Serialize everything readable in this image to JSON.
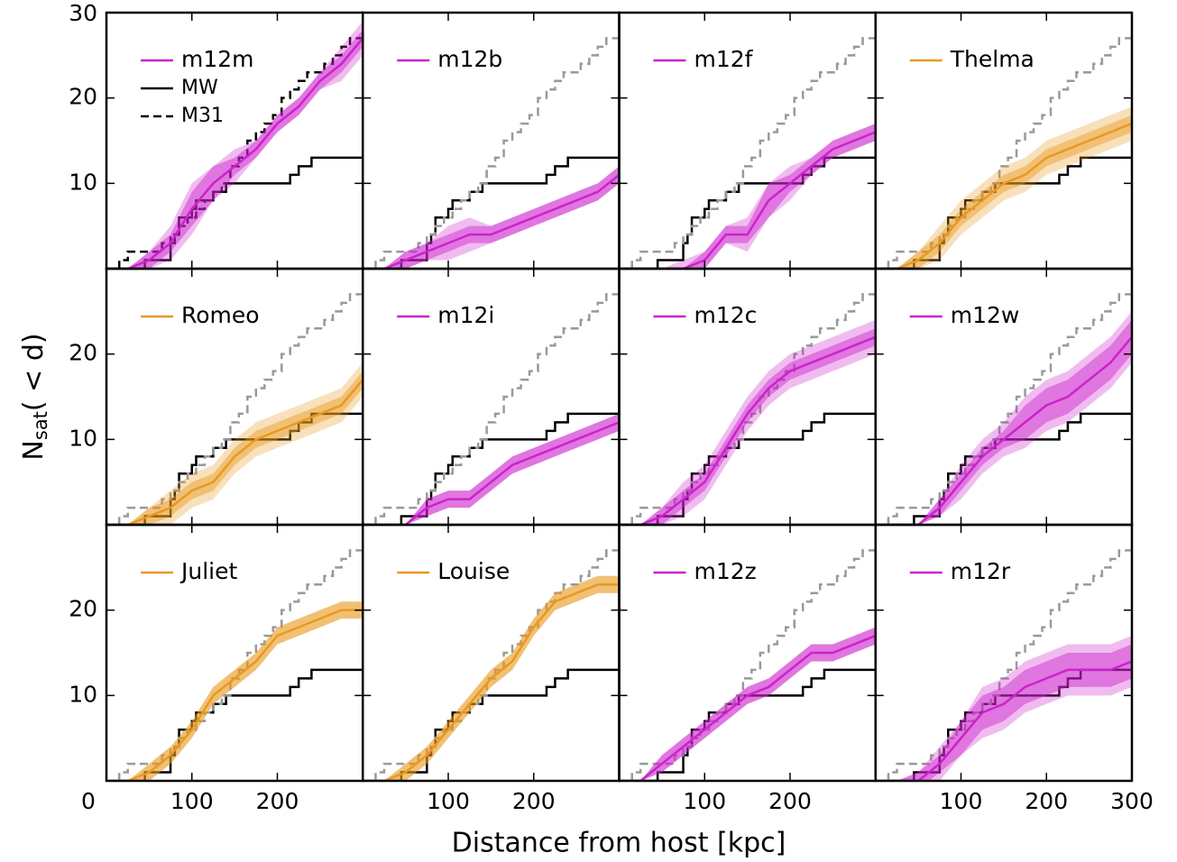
{
  "x_label": "Distance from host [kpc]",
  "y_label": [
    "N",
    "sat",
    "( < d)"
  ],
  "xlim": [
    0,
    300
  ],
  "ylim": [
    0,
    30
  ],
  "xticks": [
    0,
    100,
    200,
    300
  ],
  "yticks": [
    10,
    20,
    30
  ],
  "reference": {
    "series": [
      {
        "name": "MW",
        "color": "#000000",
        "dashed": false,
        "x": [
          0,
          45,
          60,
          75,
          80,
          85,
          95,
          100,
          105,
          125,
          140,
          215,
          225,
          240,
          300
        ],
        "values": [
          0,
          1,
          1,
          3,
          4,
          6,
          6,
          7,
          8,
          9,
          10,
          11,
          12,
          13,
          13
        ]
      },
      {
        "name": "M31",
        "color": "#999999",
        "dashed": true,
        "x": [
          0,
          15,
          25,
          55,
          65,
          75,
          85,
          95,
          105,
          115,
          125,
          135,
          145,
          155,
          165,
          175,
          185,
          195,
          205,
          215,
          225,
          235,
          245,
          255,
          265,
          275,
          285,
          300
        ],
        "values": [
          0,
          1,
          2,
          2,
          3,
          4,
          5,
          6,
          7,
          8,
          9,
          10,
          12,
          13,
          15,
          16,
          17,
          18,
          20,
          21,
          22,
          23,
          23,
          24,
          25,
          26,
          27,
          27
        ]
      }
    ]
  },
  "chart_data": [
    {
      "type": "line",
      "name": "m12m",
      "color": "#cc22cc",
      "m31_color": "#000000",
      "show_reference_legend": true,
      "x": [
        0,
        25,
        50,
        75,
        100,
        125,
        150,
        175,
        200,
        225,
        250,
        275,
        300
      ],
      "values": [
        0,
        0,
        1,
        3,
        7,
        10,
        12,
        14,
        17,
        19,
        22,
        24,
        27
      ],
      "err_inner": [
        0,
        0,
        1,
        1,
        2,
        2,
        1,
        1,
        1,
        1,
        1,
        1,
        1
      ],
      "err_outer": [
        0,
        0,
        1,
        2,
        3,
        2,
        2,
        1,
        1,
        1,
        1,
        2,
        2
      ]
    },
    {
      "type": "line",
      "name": "m12b",
      "color": "#cc22cc",
      "x": [
        0,
        25,
        50,
        75,
        100,
        125,
        150,
        175,
        200,
        225,
        250,
        275,
        300
      ],
      "values": [
        0,
        0,
        1,
        2,
        3,
        4,
        4,
        5,
        6,
        7,
        8,
        9,
        11
      ],
      "err_inner": [
        0,
        0,
        1,
        1,
        1,
        1,
        1,
        1,
        1,
        1,
        1,
        1,
        1
      ],
      "err_outer": [
        0,
        0,
        1,
        1,
        2,
        2,
        1,
        1,
        1,
        1,
        1,
        1,
        1
      ]
    },
    {
      "type": "line",
      "name": "m12f",
      "color": "#cc22cc",
      "x": [
        0,
        25,
        50,
        75,
        100,
        125,
        150,
        175,
        200,
        225,
        250,
        275,
        300
      ],
      "values": [
        0,
        0,
        0,
        0,
        1,
        4,
        4,
        8,
        10,
        12,
        14,
        15,
        16
      ],
      "err_inner": [
        0,
        0,
        0,
        0,
        1,
        1,
        1,
        2,
        1,
        1,
        1,
        1,
        1
      ],
      "err_outer": [
        0,
        0,
        0,
        1,
        1,
        1,
        2,
        2,
        2,
        1,
        1,
        1,
        1
      ]
    },
    {
      "type": "line",
      "name": "Thelma",
      "color": "#e8991f",
      "x": [
        0,
        25,
        50,
        75,
        100,
        125,
        150,
        175,
        200,
        225,
        250,
        275,
        300
      ],
      "values": [
        0,
        0,
        1,
        3,
        6,
        8,
        10,
        11,
        13,
        14,
        15,
        16,
        17
      ],
      "err_inner": [
        0,
        0,
        1,
        1,
        1,
        1,
        1,
        1,
        1,
        1,
        1,
        1,
        1
      ],
      "err_outer": [
        0,
        0,
        1,
        2,
        2,
        2,
        2,
        2,
        2,
        2,
        2,
        2,
        2
      ]
    },
    {
      "type": "line",
      "name": "Romeo",
      "color": "#e8991f",
      "x": [
        0,
        25,
        50,
        75,
        100,
        125,
        150,
        175,
        200,
        225,
        250,
        275,
        300
      ],
      "values": [
        0,
        0,
        1,
        2,
        4,
        5,
        8,
        10,
        11,
        12,
        13,
        14,
        17
      ],
      "err_inner": [
        0,
        0,
        1,
        1,
        1,
        1,
        1,
        1,
        1,
        1,
        1,
        1,
        1
      ],
      "err_outer": [
        0,
        0,
        1,
        2,
        2,
        2,
        2,
        2,
        2,
        2,
        2,
        2,
        2
      ]
    },
    {
      "type": "line",
      "name": "m12i",
      "color": "#cc22cc",
      "x": [
        0,
        25,
        50,
        75,
        100,
        125,
        150,
        175,
        200,
        225,
        250,
        275,
        300
      ],
      "values": [
        0,
        0,
        0,
        2,
        3,
        3,
        5,
        7,
        8,
        9,
        10,
        11,
        12
      ],
      "err_inner": [
        0,
        0,
        0,
        1,
        1,
        1,
        1,
        1,
        1,
        1,
        1,
        1,
        1
      ],
      "err_outer": [
        0,
        0,
        0,
        1,
        1,
        1,
        1,
        1,
        1,
        1,
        1,
        1,
        1
      ]
    },
    {
      "type": "line",
      "name": "m12c",
      "color": "#cc22cc",
      "x": [
        0,
        25,
        50,
        75,
        100,
        125,
        150,
        175,
        200,
        225,
        250,
        275,
        300
      ],
      "values": [
        0,
        0,
        1,
        3,
        5,
        9,
        13,
        16,
        18,
        19,
        20,
        21,
        22
      ],
      "err_inner": [
        0,
        0,
        1,
        1,
        1,
        1,
        1,
        1,
        1,
        1,
        1,
        1,
        1
      ],
      "err_outer": [
        0,
        0,
        1,
        2,
        2,
        2,
        2,
        2,
        2,
        2,
        2,
        2,
        2
      ]
    },
    {
      "type": "line",
      "name": "m12w",
      "color": "#cc22cc",
      "x": [
        0,
        25,
        50,
        75,
        100,
        125,
        150,
        175,
        200,
        225,
        250,
        275,
        300
      ],
      "values": [
        0,
        0,
        0,
        2,
        5,
        8,
        10,
        12,
        14,
        15,
        17,
        19,
        22
      ],
      "err_inner": [
        0,
        0,
        0,
        1,
        1,
        1,
        1,
        2,
        2,
        2,
        2,
        2,
        2
      ],
      "err_outer": [
        0,
        0,
        0,
        1,
        2,
        2,
        2,
        3,
        3,
        3,
        3,
        3,
        3
      ]
    },
    {
      "type": "line",
      "name": "Juliet",
      "color": "#e8991f",
      "x": [
        0,
        25,
        50,
        75,
        100,
        125,
        150,
        175,
        200,
        225,
        250,
        275,
        300
      ],
      "values": [
        0,
        0,
        1,
        3,
        6,
        10,
        12,
        14,
        17,
        18,
        19,
        20,
        20
      ],
      "err_inner": [
        0,
        0,
        1,
        1,
        1,
        1,
        1,
        1,
        1,
        1,
        1,
        1,
        1
      ],
      "err_outer": [
        0,
        0,
        1,
        1,
        1,
        1,
        1,
        1,
        1,
        1,
        1,
        1,
        1
      ]
    },
    {
      "type": "line",
      "name": "Louise",
      "color": "#e8991f",
      "x": [
        0,
        25,
        50,
        75,
        100,
        125,
        150,
        175,
        200,
        225,
        250,
        275,
        300
      ],
      "values": [
        0,
        0,
        1,
        3,
        6,
        9,
        12,
        14,
        18,
        21,
        22,
        23,
        23
      ],
      "err_inner": [
        0,
        0,
        1,
        1,
        1,
        1,
        1,
        1,
        1,
        1,
        1,
        1,
        1
      ],
      "err_outer": [
        0,
        0,
        1,
        1,
        1,
        1,
        1,
        1,
        1,
        1,
        1,
        1,
        1
      ]
    },
    {
      "type": "line",
      "name": "m12z",
      "color": "#cc22cc",
      "x": [
        0,
        25,
        50,
        75,
        100,
        125,
        150,
        175,
        200,
        225,
        250,
        275,
        300
      ],
      "values": [
        0,
        0,
        2,
        4,
        6,
        8,
        10,
        11,
        13,
        15,
        15,
        16,
        17
      ],
      "err_inner": [
        0,
        0,
        1,
        1,
        1,
        1,
        1,
        1,
        1,
        1,
        1,
        1,
        1
      ],
      "err_outer": [
        0,
        0,
        1,
        1,
        1,
        1,
        1,
        1,
        1,
        1,
        1,
        1,
        1
      ]
    },
    {
      "type": "line",
      "name": "m12r",
      "color": "#cc22cc",
      "x": [
        0,
        25,
        50,
        75,
        100,
        125,
        150,
        175,
        200,
        225,
        250,
        275,
        300
      ],
      "values": [
        0,
        0,
        0,
        2,
        5,
        8,
        9,
        11,
        12,
        13,
        13,
        13,
        14
      ],
      "err_inner": [
        0,
        0,
        1,
        1,
        2,
        2,
        2,
        2,
        2,
        2,
        2,
        2,
        2
      ],
      "err_outer": [
        0,
        0,
        1,
        2,
        2,
        3,
        3,
        3,
        3,
        3,
        3,
        3,
        3
      ]
    }
  ]
}
